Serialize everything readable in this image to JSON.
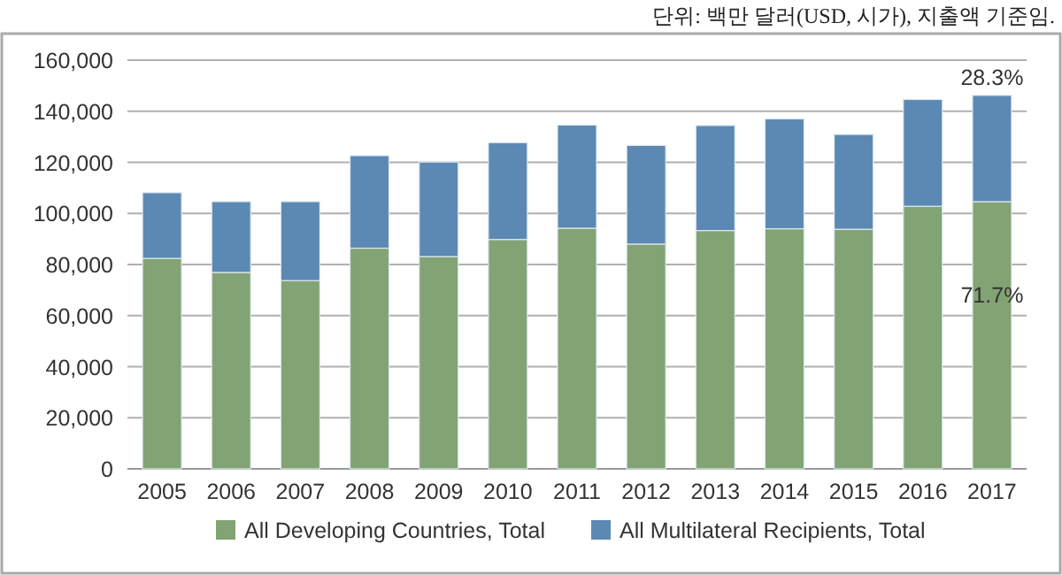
{
  "chart_data": {
    "type": "bar",
    "stacked": true,
    "subtitle": "단위: 백만 달러(USD, 시가), 지출액 기준임.",
    "categories": [
      "2005",
      "2006",
      "2007",
      "2008",
      "2009",
      "2010",
      "2011",
      "2012",
      "2013",
      "2014",
      "2015",
      "2016",
      "2017"
    ],
    "series": [
      {
        "name": "All Developing Countries, Total",
        "color": "#82a373",
        "values": [
          82400,
          76900,
          73700,
          86400,
          83100,
          89800,
          94200,
          88000,
          93300,
          94000,
          93800,
          102800,
          104600
        ]
      },
      {
        "name": "All Multilateral Recipients, Total",
        "color": "#5b89b4",
        "values": [
          25700,
          27700,
          30900,
          36200,
          37000,
          37900,
          40400,
          38600,
          41100,
          43000,
          37100,
          41800,
          41600
        ]
      }
    ],
    "ylim": [
      0,
      160000
    ],
    "yticks": [
      {
        "value": 0,
        "label": "0"
      },
      {
        "value": 20000,
        "label": "20,000"
      },
      {
        "value": 40000,
        "label": "40,000"
      },
      {
        "value": 60000,
        "label": "60,000"
      },
      {
        "value": 80000,
        "label": "80,000"
      },
      {
        "value": 100000,
        "label": "100,000"
      },
      {
        "value": 120000,
        "label": "120,000"
      },
      {
        "value": 140000,
        "label": "140,000"
      },
      {
        "value": 160000,
        "label": "160,000"
      }
    ],
    "grid": "y",
    "legend": "bottom",
    "annotations": [
      {
        "text": "28.3%",
        "x": "2017",
        "y": 146200
      },
      "71.7%"
    ]
  }
}
